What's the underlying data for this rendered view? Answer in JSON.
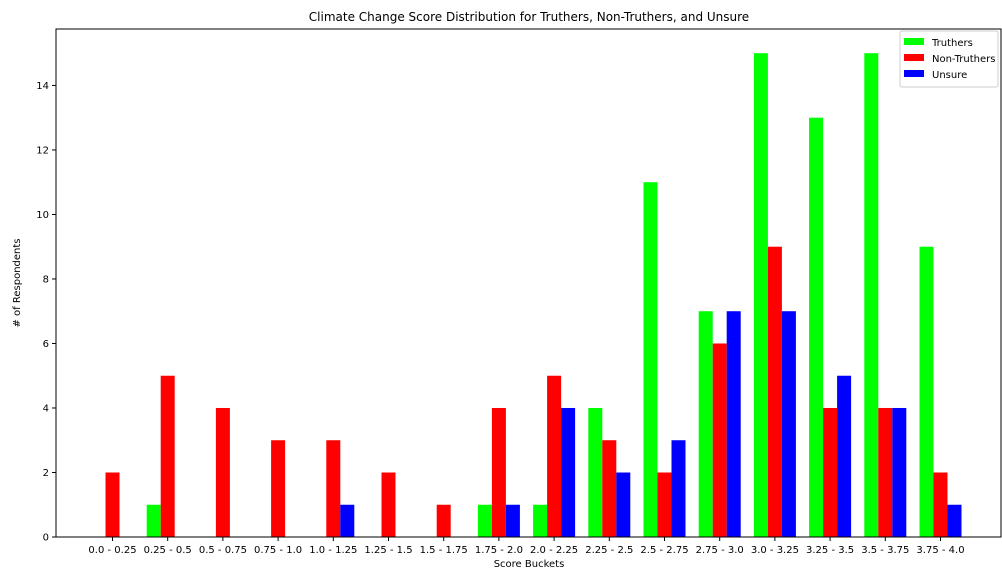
{
  "chart_data": {
    "type": "bar",
    "title": "Climate Change Score Distribution for Truthers, Non-Truthers, and Unsure",
    "xlabel": "Score Buckets",
    "ylabel": "# of Respondents",
    "ylim": [
      0,
      15.75
    ],
    "yticks": [
      0,
      2,
      4,
      6,
      8,
      10,
      12,
      14
    ],
    "grid": false,
    "legend_position": "top-right",
    "categories": [
      "0.0 - 0.25",
      "0.25 - 0.5",
      "0.5 - 0.75",
      "0.75 - 1.0",
      "1.0 - 1.25",
      "1.25 - 1.5",
      "1.5 - 1.75",
      "1.75 - 2.0",
      "2.0 - 2.25",
      "2.25 - 2.5",
      "2.5 - 2.75",
      "2.75 - 3.0",
      "3.0 - 3.25",
      "3.25 - 3.5",
      "3.5 - 3.75",
      "3.75 - 4.0"
    ],
    "series": [
      {
        "name": "Truthers",
        "color": "#00ff00",
        "values": [
          0,
          1,
          0,
          0,
          0,
          0,
          0,
          1,
          1,
          4,
          11,
          7,
          15,
          13,
          15,
          9
        ]
      },
      {
        "name": "Non-Truthers",
        "color": "#ff0000",
        "values": [
          2,
          5,
          4,
          3,
          3,
          2,
          1,
          4,
          5,
          3,
          2,
          6,
          9,
          4,
          4,
          2
        ]
      },
      {
        "name": "Unsure",
        "color": "#0000ff",
        "values": [
          0,
          0,
          0,
          0,
          1,
          0,
          0,
          1,
          4,
          2,
          3,
          7,
          7,
          5,
          4,
          1
        ]
      }
    ]
  }
}
